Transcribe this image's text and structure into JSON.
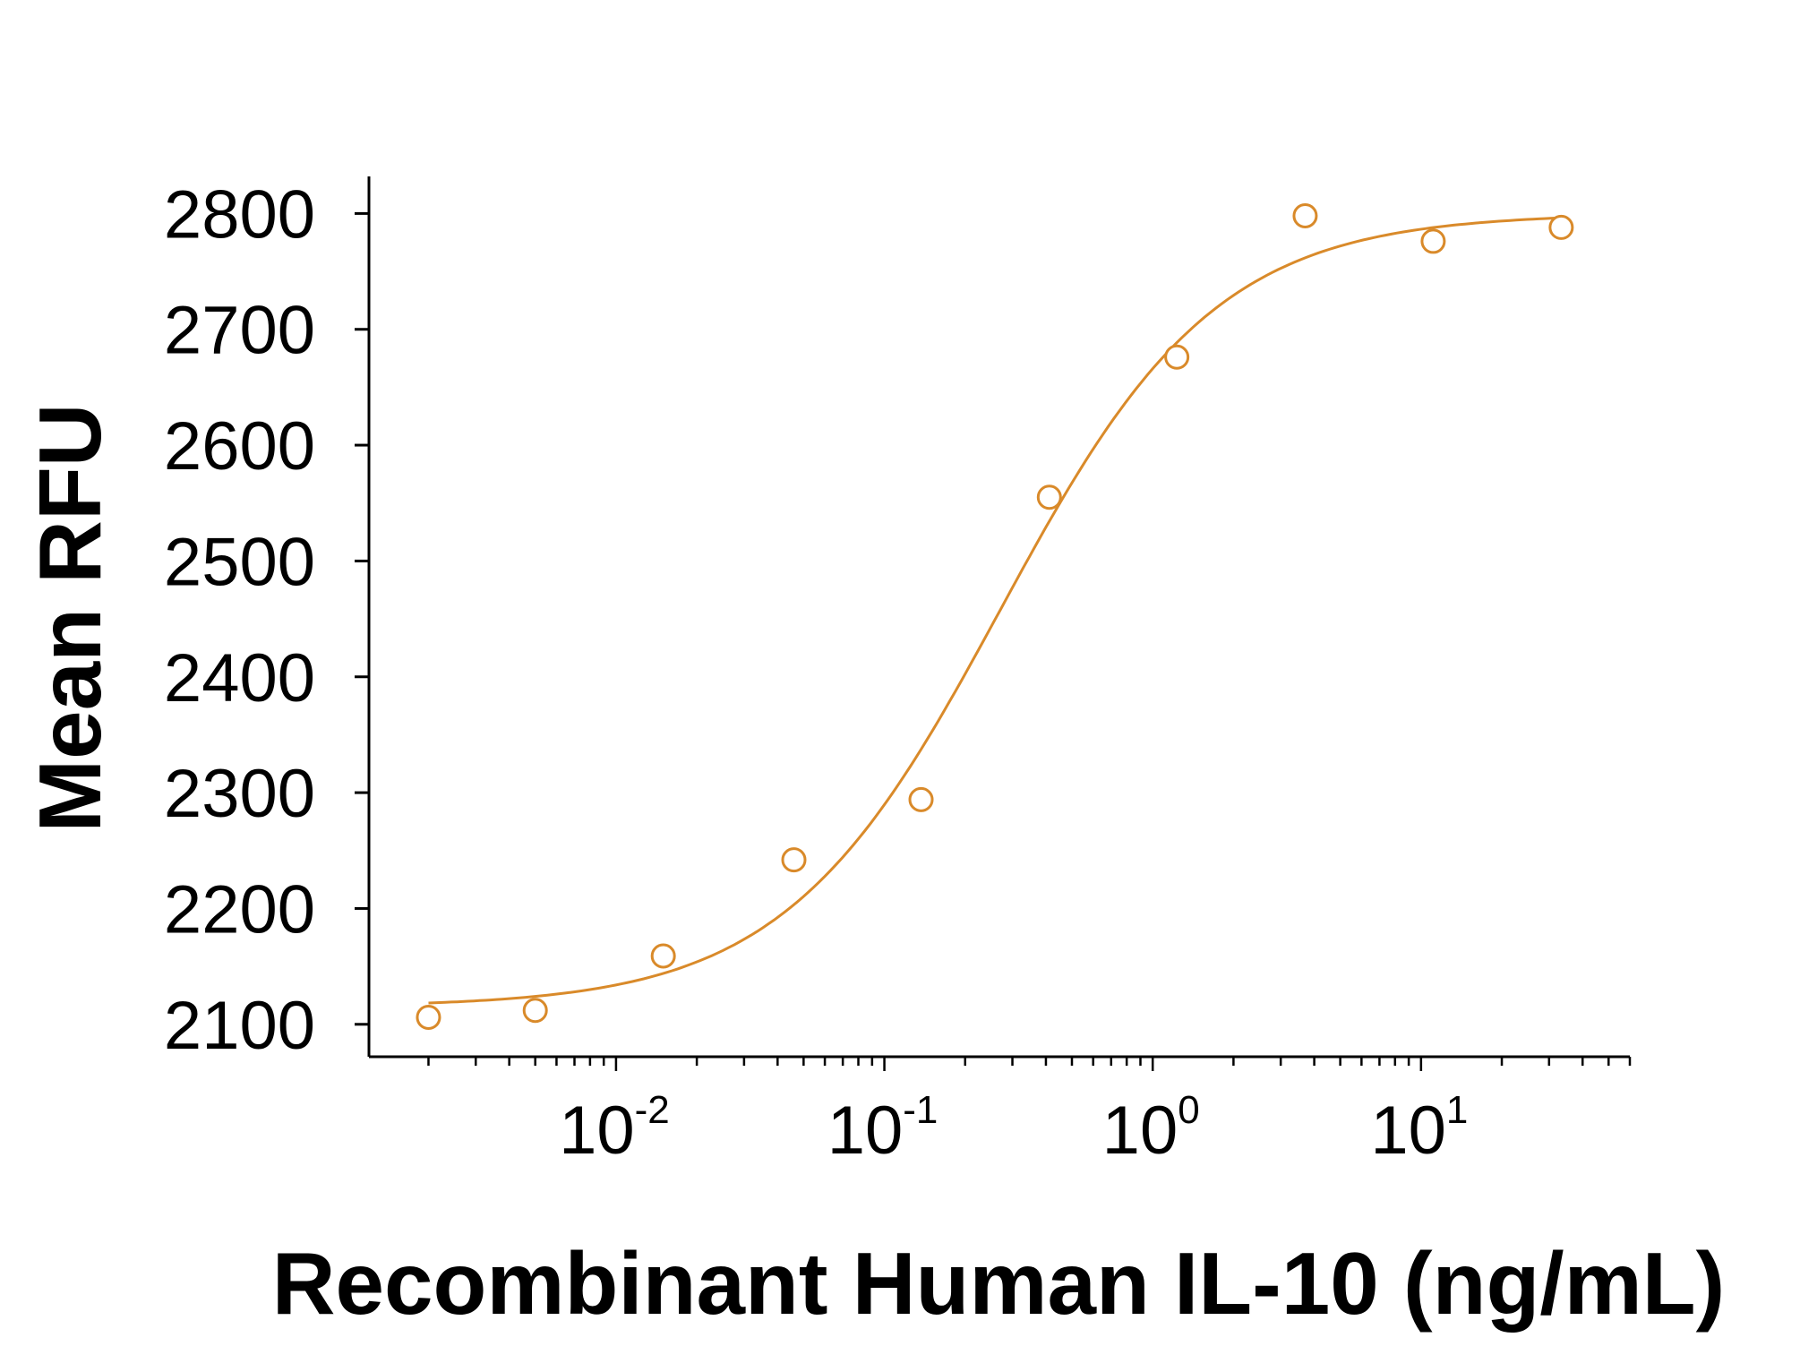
{
  "chart_data": {
    "type": "scatter",
    "title": "",
    "xlabel": "Recombinant Human IL-10 (ng/mL)",
    "ylabel": "Mean RFU",
    "x_scale": "log",
    "xlim": [
      0.0012,
      60
    ],
    "ylim": [
      2072,
      2832
    ],
    "x_ticks": [
      {
        "value": 0.01,
        "base": "10",
        "exp": "-2"
      },
      {
        "value": 0.1,
        "base": "10",
        "exp": "-1"
      },
      {
        "value": 1,
        "base": "10",
        "exp": "0"
      },
      {
        "value": 10,
        "base": "10",
        "exp": "1"
      }
    ],
    "y_ticks": [
      2100,
      2200,
      2300,
      2400,
      2500,
      2600,
      2700,
      2800
    ],
    "grid": false,
    "legend": "none",
    "color": "#D98A2A",
    "series": [
      {
        "points": [
          {
            "x": 0.002,
            "y": 2106
          },
          {
            "x": 0.005,
            "y": 2112
          },
          {
            "x": 0.015,
            "y": 2159
          },
          {
            "x": 0.046,
            "y": 2242
          },
          {
            "x": 0.137,
            "y": 2294
          },
          {
            "x": 0.412,
            "y": 2555
          },
          {
            "x": 1.23,
            "y": 2676
          },
          {
            "x": 3.7,
            "y": 2798
          },
          {
            "x": 11.1,
            "y": 2776
          },
          {
            "x": 33.3,
            "y": 2788
          }
        ],
        "fit": {
          "model": "4PL",
          "bottom": 2115,
          "top": 2800,
          "ec50": 0.27,
          "hill": 1.08,
          "x_range": [
            0.002,
            33.3
          ]
        }
      }
    ]
  }
}
